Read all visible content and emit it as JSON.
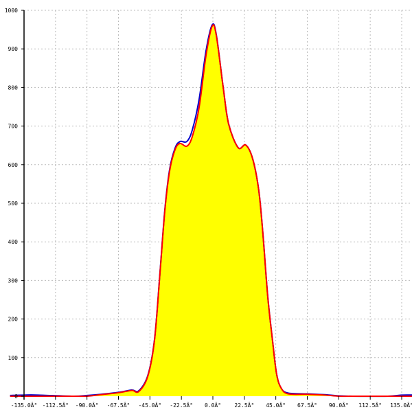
{
  "chart_data": {
    "type": "area",
    "title": "",
    "xlabel": "",
    "ylabel": "",
    "xlim": [
      -135,
      135
    ],
    "ylim": [
      0,
      1000
    ],
    "grid": true,
    "x_ticks": [
      -135,
      -112.5,
      -90,
      -67.5,
      -45,
      -22.5,
      0,
      22.5,
      45,
      67.5,
      90,
      112.5,
      135
    ],
    "x_tick_labels": [
      "-135.0Â°",
      "-112.5Â°",
      "-90.0Â°",
      "-67.5Â°",
      "-45.0Â°",
      "-22.5Â°",
      "0.0Â°",
      "22.5Â°",
      "45.0Â°",
      "67.5Â°",
      "90.0Â°",
      "112.5Â°",
      "135.0Â°"
    ],
    "y_ticks": [
      0,
      100,
      200,
      300,
      400,
      500,
      600,
      700,
      800,
      900,
      1000
    ],
    "y_tick_labels": [
      "0",
      "100",
      "200",
      "300",
      "400",
      "500",
      "600",
      "700",
      "800",
      "900",
      "1000"
    ],
    "fill_color": "#ffff00",
    "series": [
      {
        "color": "#0000cc",
        "x": [
          -145,
          -135,
          -125,
          -100,
          -90,
          -80,
          -67.5,
          -58,
          -53,
          -46.5,
          -41.7,
          -37.7,
          -34.3,
          -30.9,
          -27,
          -23.5,
          -18.6,
          -14.7,
          -9.8,
          -4.9,
          -0.5,
          2.5,
          7.4,
          11.3,
          18.1,
          23.5,
          28.4,
          32.8,
          35.8,
          39.2,
          42.6,
          45.6,
          49,
          54,
          67.5,
          80,
          90,
          100,
          125,
          135,
          145
        ],
        "y": [
          2,
          3,
          3,
          0,
          2,
          5,
          10,
          16,
          14,
          54,
          148,
          326,
          485,
          588,
          643,
          660,
          660,
          690,
          770,
          895,
          962,
          936,
          800,
          705,
          644,
          651,
          616,
          534,
          420,
          260,
          146,
          57,
          20,
          8,
          6,
          4,
          1,
          0,
          0,
          3,
          3
        ]
      },
      {
        "color": "#ff0000",
        "x": [
          -145,
          -135,
          -125,
          -100,
          -90,
          -80,
          -67.5,
          -58,
          -53,
          -46.5,
          -41.7,
          -37.7,
          -34.3,
          -30.9,
          -27,
          -23.5,
          -18.6,
          -14.7,
          -9.8,
          -4.9,
          -0.5,
          2.5,
          7.4,
          11.3,
          18.1,
          23.5,
          28.4,
          32.8,
          35.8,
          39.2,
          42.6,
          45.6,
          49,
          54,
          67.5,
          80,
          90,
          100,
          125,
          135,
          145
        ],
        "y": [
          0,
          0,
          0,
          0,
          0,
          4,
          9,
          15,
          12,
          52,
          146,
          324,
          482,
          584,
          639,
          655,
          648,
          673,
          749,
          883,
          959,
          934,
          800,
          705,
          644,
          651,
          616,
          534,
          420,
          260,
          146,
          57,
          20,
          6,
          5,
          3,
          0,
          0,
          0,
          0,
          0
        ]
      }
    ]
  }
}
